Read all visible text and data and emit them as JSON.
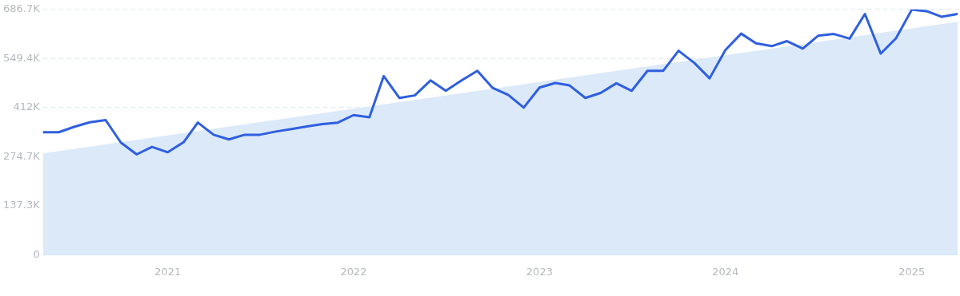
{
  "chart_data": {
    "type": "line",
    "xlim": [
      "2020-05",
      "2025-04"
    ],
    "xticks": [
      "2021",
      "2022",
      "2023",
      "2024",
      "2025"
    ],
    "ylim": [
      0,
      686700
    ],
    "yticks": [
      0,
      {
        "value": 137300,
        "label": "137.3K"
      },
      {
        "value": 274700,
        "label": "274.7K"
      },
      {
        "value": 412000,
        "label": "412K"
      },
      {
        "value": 549400,
        "label": "549.4K"
      },
      {
        "value": 686700,
        "label": "686.7K"
      }
    ],
    "grid": "y",
    "legend": false,
    "marker": "none",
    "series": [
      {
        "type": "area",
        "color": "#dbe9f9",
        "x": [
          "2020-05",
          "2025-04"
        ],
        "values": [
          284000,
          652000
        ]
      },
      {
        "type": "line",
        "color": "#2f5fe0",
        "line_style": "solid",
        "x": [
          "2020-05",
          "2020-06",
          "2020-07",
          "2020-08",
          "2020-09",
          "2020-10",
          "2020-11",
          "2020-12",
          "2021-01",
          "2021-02",
          "2021-03",
          "2021-04",
          "2021-05",
          "2021-06",
          "2021-07",
          "2021-08",
          "2021-09",
          "2021-10",
          "2021-11",
          "2021-12",
          "2022-01",
          "2022-02",
          "2022-03",
          "2022-04",
          "2022-05",
          "2022-06",
          "2022-07",
          "2022-08",
          "2022-09",
          "2022-10",
          "2022-11",
          "2022-12",
          "2023-01",
          "2023-02",
          "2023-03",
          "2023-04",
          "2023-05",
          "2023-06",
          "2023-07",
          "2023-08",
          "2023-09",
          "2023-10",
          "2023-11",
          "2023-12",
          "2024-01",
          "2024-02",
          "2024-03",
          "2024-04",
          "2024-05",
          "2024-06",
          "2024-07",
          "2024-08",
          "2024-09",
          "2024-10",
          "2024-11",
          "2024-12",
          "2025-01",
          "2025-02",
          "2025-03",
          "2025-04"
        ],
        "values": [
          343000,
          343000,
          358000,
          371000,
          377000,
          314000,
          281000,
          302000,
          287000,
          315000,
          370000,
          336000,
          323000,
          336000,
          336000,
          345000,
          352000,
          359000,
          366000,
          370000,
          391000,
          385000,
          500000,
          439000,
          446000,
          488000,
          459000,
          488000,
          515000,
          467000,
          447000,
          412000,
          468000,
          481000,
          474000,
          439000,
          453000,
          480000,
          459000,
          515000,
          515000,
          571000,
          537000,
          494000,
          573000,
          619000,
          592000,
          584000,
          598000,
          577000,
          613000,
          618000,
          605000,
          674000,
          563000,
          606000,
          686000,
          681000,
          666000,
          674000
        ]
      }
    ]
  }
}
